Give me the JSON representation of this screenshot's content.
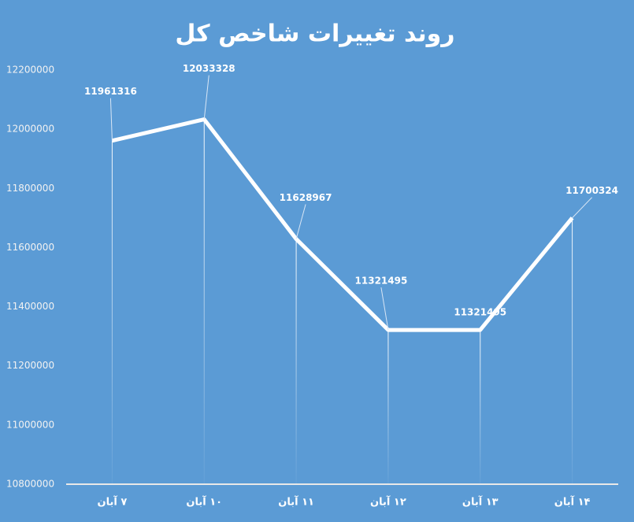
{
  "chart_data": {
    "type": "line",
    "title": "روند تغییرات شاخص کل",
    "categories": [
      "۷ آبان",
      "۱۰ آبان",
      "۱۱ آبان",
      "۱۲ آبان",
      "۱۳ آبان",
      "۱۴ آبان"
    ],
    "values": [
      11961316,
      12033328,
      11628967,
      11321495,
      11321495,
      11700324
    ],
    "color": "#ffffff",
    "ylim": [
      10800000,
      12200000
    ],
    "yticks": [
      10800000,
      11000000,
      11200000,
      11400000,
      11600000,
      11800000,
      12000000,
      12200000
    ],
    "grid": false
  }
}
